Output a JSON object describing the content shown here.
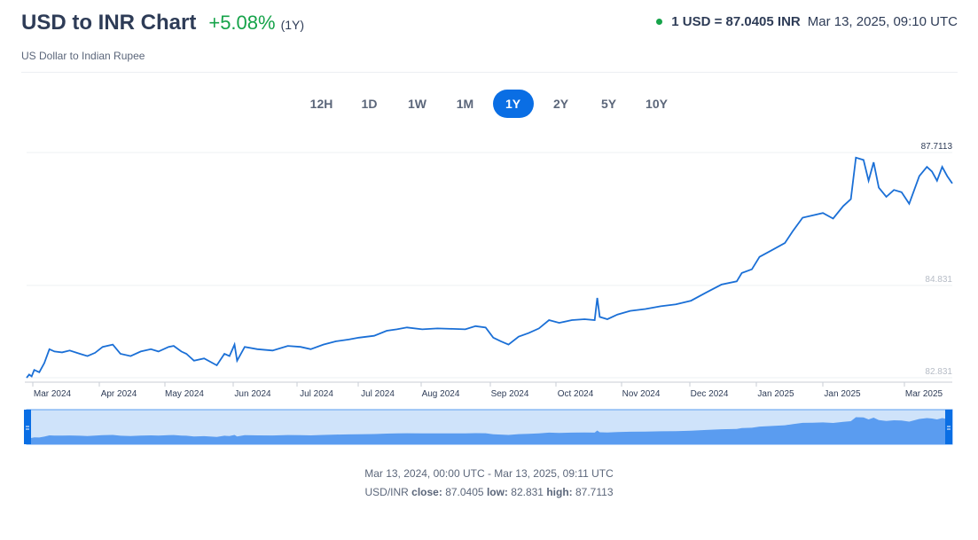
{
  "header": {
    "title": "USD to INR Chart",
    "change": "+5.08%",
    "change_period": "(1Y)",
    "subtitle": "US Dollar to Indian Rupee",
    "rate": "1 USD = 87.0405 INR",
    "rate_time": "Mar 13, 2025, 09:10 UTC"
  },
  "ranges": [
    {
      "label": "12H",
      "active": false
    },
    {
      "label": "1D",
      "active": false
    },
    {
      "label": "1W",
      "active": false
    },
    {
      "label": "1M",
      "active": false
    },
    {
      "label": "1Y",
      "active": true
    },
    {
      "label": "2Y",
      "active": false
    },
    {
      "label": "5Y",
      "active": false
    },
    {
      "label": "10Y",
      "active": false
    }
  ],
  "colors": {
    "line": "#1a6fd6",
    "navigator_fill": "#5a9cf0",
    "navigator_bg": "#cfe3fa",
    "accent": "#0a6ee4",
    "positive": "#16a34a"
  },
  "chart_data": {
    "type": "line",
    "title": "USD to INR Chart",
    "series": [
      {
        "name": "USD/INR",
        "x": [
          "2024-03-13",
          "2024-03-14",
          "2024-03-15",
          "2024-03-16",
          "2024-03-18",
          "2024-03-20",
          "2024-03-22",
          "2024-03-24",
          "2024-03-27",
          "2024-03-30",
          "2024-04-03",
          "2024-04-06",
          "2024-04-09",
          "2024-04-12",
          "2024-04-16",
          "2024-04-19",
          "2024-04-23",
          "2024-04-27",
          "2024-05-01",
          "2024-05-04",
          "2024-05-08",
          "2024-05-10",
          "2024-05-13",
          "2024-05-15",
          "2024-05-18",
          "2024-05-22",
          "2024-05-27",
          "2024-05-30",
          "2024-06-01",
          "2024-06-03",
          "2024-06-04",
          "2024-06-07",
          "2024-06-12",
          "2024-06-18",
          "2024-06-24",
          "2024-06-29",
          "2024-07-03",
          "2024-07-08",
          "2024-07-13",
          "2024-07-18",
          "2024-07-22",
          "2024-07-28",
          "2024-08-02",
          "2024-08-06",
          "2024-08-10",
          "2024-08-16",
          "2024-08-22",
          "2024-08-28",
          "2024-09-02",
          "2024-09-06",
          "2024-09-10",
          "2024-09-13",
          "2024-09-16",
          "2024-09-19",
          "2024-09-23",
          "2024-09-27",
          "2024-10-01",
          "2024-10-05",
          "2024-10-09",
          "2024-10-14",
          "2024-10-19",
          "2024-10-23",
          "2024-10-24",
          "2024-10-25",
          "2024-10-28",
          "2024-11-01",
          "2024-11-06",
          "2024-11-12",
          "2024-11-18",
          "2024-11-24",
          "2024-11-30",
          "2024-12-06",
          "2024-12-12",
          "2024-12-18",
          "2024-12-20",
          "2024-12-24",
          "2024-12-27",
          "2025-01-01",
          "2025-01-06",
          "2025-01-09",
          "2025-01-13",
          "2025-01-17",
          "2025-01-21",
          "2025-01-25",
          "2025-01-29",
          "2025-02-01",
          "2025-02-03",
          "2025-02-06",
          "2025-02-08",
          "2025-02-10",
          "2025-02-12",
          "2025-02-15",
          "2025-02-18",
          "2025-02-21",
          "2025-02-24",
          "2025-02-26",
          "2025-02-28",
          "2025-03-03",
          "2025-03-05",
          "2025-03-07",
          "2025-03-09",
          "2025-03-11",
          "2025-03-13"
        ],
        "values": [
          82.83,
          82.9,
          82.86,
          83.0,
          82.95,
          83.15,
          83.45,
          83.4,
          83.38,
          83.42,
          83.35,
          83.3,
          83.37,
          83.5,
          83.55,
          83.35,
          83.3,
          83.4,
          83.45,
          83.4,
          83.5,
          83.52,
          83.4,
          83.35,
          83.2,
          83.25,
          83.1,
          83.35,
          83.3,
          83.55,
          83.2,
          83.5,
          83.45,
          83.42,
          83.52,
          83.5,
          83.45,
          83.55,
          83.62,
          83.66,
          83.7,
          83.74,
          83.85,
          83.88,
          83.92,
          83.88,
          83.9,
          83.89,
          83.88,
          83.95,
          83.92,
          83.7,
          83.62,
          83.55,
          83.72,
          83.8,
          83.9,
          84.08,
          84.02,
          84.08,
          84.1,
          84.08,
          84.56,
          84.15,
          84.1,
          84.2,
          84.28,
          84.32,
          84.38,
          84.42,
          84.5,
          84.68,
          84.85,
          84.92,
          85.1,
          85.18,
          85.45,
          85.6,
          85.75,
          86.0,
          86.3,
          86.35,
          86.4,
          86.28,
          86.55,
          86.7,
          87.6,
          87.55,
          87.1,
          87.5,
          86.95,
          86.75,
          86.9,
          86.85,
          86.6,
          86.9,
          87.2,
          87.4,
          87.3,
          87.1,
          87.4,
          87.2,
          87.04
        ]
      }
    ],
    "x_ticks": [
      "Mar 2024",
      "Apr 2024",
      "May 2024",
      "Jun 2024",
      "Jul 2024",
      "Jul 2024",
      "Aug 2024",
      "Sep 2024",
      "Oct 2024",
      "Nov 2024",
      "Dec 2024",
      "Jan 2025",
      "Jan 2025",
      "Mar 2025"
    ],
    "y_ticks": [
      "82.831",
      "84.831",
      "87.7113"
    ],
    "ylim": [
      82.831,
      87.7113
    ],
    "grid": true,
    "legend": "none",
    "navigator": true
  },
  "footer": {
    "range": "Mar 13, 2024, 00:00 UTC - Mar 13, 2025, 09:11 UTC",
    "pair": "USD/INR",
    "close_label": "close:",
    "close_value": "87.0405",
    "low_label": "low:",
    "low_value": "82.831",
    "high_label": "high:",
    "high_value": "87.7113"
  }
}
